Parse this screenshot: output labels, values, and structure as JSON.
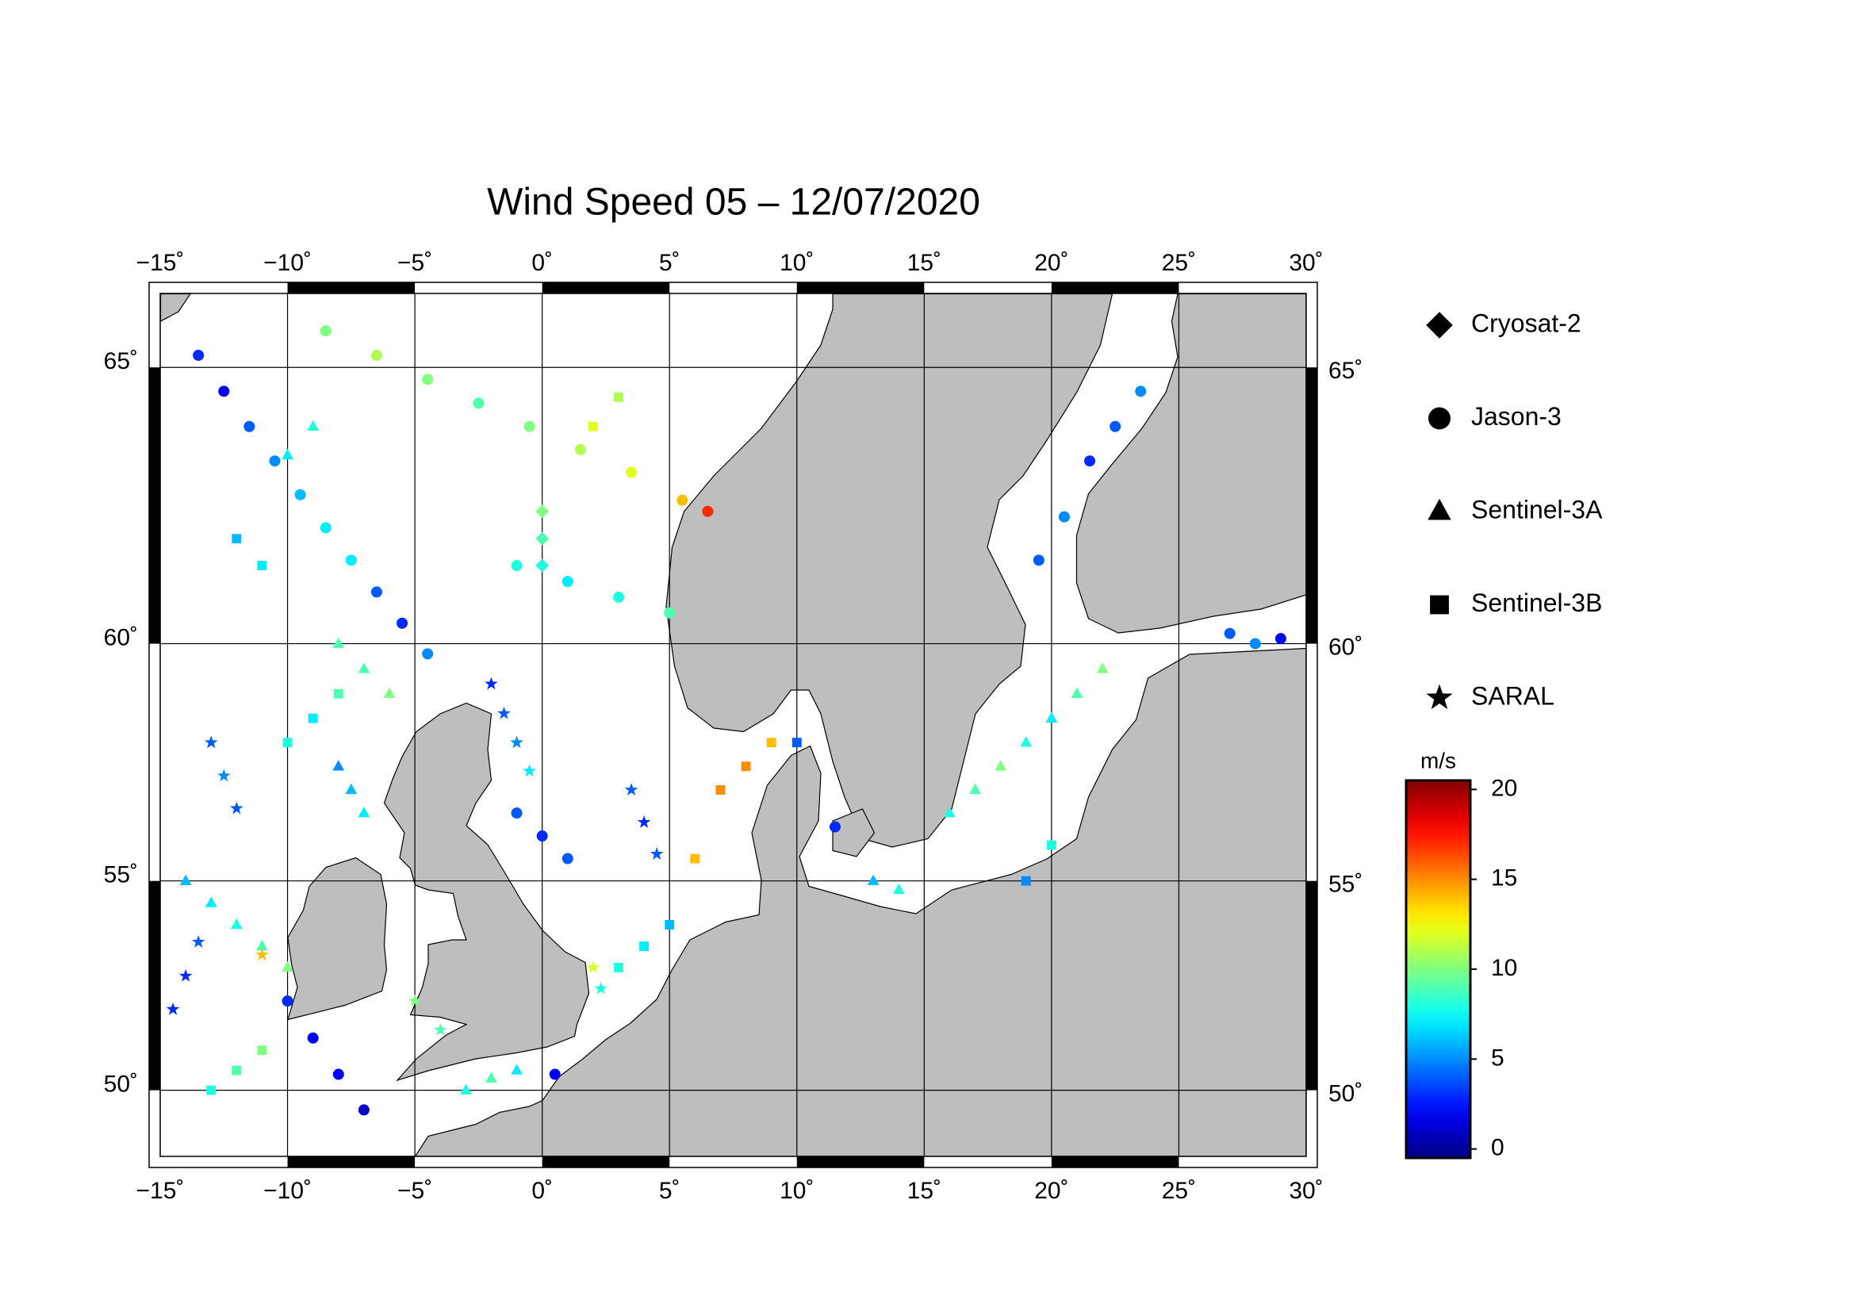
{
  "chart_data": {
    "type": "map-scatter",
    "title": "Wind Speed 05 – 12/07/2020",
    "projection": "mercator",
    "xlim": [
      -15,
      30
    ],
    "ylim": [
      48.3,
      66.2
    ],
    "xticks": [
      {
        "value": -15,
        "label": "−15˚"
      },
      {
        "value": -10,
        "label": "−10˚"
      },
      {
        "value": -5,
        "label": "−5˚"
      },
      {
        "value": 0,
        "label": "0˚"
      },
      {
        "value": 5,
        "label": "5˚"
      },
      {
        "value": 10,
        "label": "10˚"
      },
      {
        "value": 15,
        "label": "15˚"
      },
      {
        "value": 20,
        "label": "20˚"
      },
      {
        "value": 25,
        "label": "25˚"
      },
      {
        "value": 30,
        "label": "30˚"
      }
    ],
    "yticks": [
      {
        "value": 50,
        "label": "50˚"
      },
      {
        "value": 55,
        "label": "55˚"
      },
      {
        "value": 60,
        "label": "60˚"
      },
      {
        "value": 65,
        "label": "65˚"
      }
    ],
    "grid": true,
    "colorbar": {
      "label": "m/s",
      "colormap": "jet",
      "clim": [
        -0.5,
        20.5
      ],
      "ticks": [
        0,
        5,
        10,
        15,
        20
      ]
    },
    "series": [
      {
        "name": "Cryosat-2",
        "marker": "diamond",
        "lon": [
          0,
          0,
          0
        ],
        "lat": [
          61.5,
          62,
          62.5
        ],
        "values": [
          8,
          9,
          10
        ]
      },
      {
        "name": "Jason-3",
        "marker": "circle",
        "lon": [
          -13.5,
          -12.5,
          -11.5,
          -10.5,
          -9.5,
          -8.5,
          -7.5,
          -6.5,
          -5.5,
          -4.5,
          -8.5,
          -6.5,
          -4.5,
          -2.5,
          -0.5,
          1.5,
          3.5,
          5.5,
          6.5,
          -1,
          1,
          3,
          5,
          -10,
          -9,
          -8,
          -7,
          -1,
          0,
          1,
          23.5,
          22.5,
          21.5,
          20.5,
          19.5,
          27,
          28,
          29,
          11.5,
          0.5
        ],
        "lat": [
          65.2,
          64.6,
          64.0,
          63.4,
          62.8,
          62.2,
          61.6,
          61.0,
          60.4,
          59.8,
          65.6,
          65.2,
          64.8,
          64.4,
          64.0,
          63.6,
          63.2,
          62.7,
          62.5,
          61.5,
          61.2,
          60.9,
          60.6,
          52.2,
          51.3,
          50.4,
          49.5,
          56.5,
          56.0,
          55.5,
          64.6,
          64.0,
          63.4,
          62.4,
          61.6,
          60.2,
          60.0,
          60.1,
          56.2,
          50.4
        ],
        "values": [
          3,
          2,
          4,
          5,
          6,
          7,
          7,
          4,
          3,
          5,
          10,
          11,
          10,
          9,
          10,
          11,
          12,
          14,
          17,
          8,
          7,
          8,
          9,
          3,
          2,
          2,
          1,
          4,
          3,
          4,
          5,
          4,
          3,
          5,
          4,
          4,
          5,
          2,
          3,
          2
        ]
      },
      {
        "name": "Sentinel-3A",
        "marker": "triangle",
        "lon": [
          -14,
          -13,
          -12,
          -11,
          -10,
          -7,
          -7.5,
          -8,
          16,
          17,
          18,
          19,
          20,
          21,
          22,
          -3,
          -2,
          -1,
          -8,
          -7,
          -6,
          -9,
          -10,
          14,
          13
        ],
        "lat": [
          55,
          54.5,
          54,
          53.5,
          53,
          56.5,
          57,
          57.5,
          56.5,
          57,
          57.5,
          58,
          58.5,
          59,
          59.5,
          50,
          50.3,
          50.5,
          60,
          59.5,
          59,
          64,
          63.5,
          54.8,
          55
        ],
        "values": [
          6,
          7,
          8,
          9,
          10,
          7,
          6,
          5,
          8,
          9,
          10,
          8,
          7,
          9,
          10,
          8,
          9,
          7,
          9,
          9,
          10,
          8,
          7,
          8,
          6
        ]
      },
      {
        "name": "Sentinel-3B",
        "marker": "square",
        "lon": [
          -13,
          -12,
          -11,
          -10,
          -9,
          -8,
          3,
          4,
          5,
          6,
          7,
          8,
          9,
          2,
          3,
          -12,
          -11,
          10,
          19,
          20
        ],
        "lat": [
          50,
          50.5,
          51,
          58,
          58.5,
          59,
          53,
          53.5,
          54,
          55.5,
          57,
          57.5,
          58,
          64,
          64.5,
          62,
          61.5,
          58.0,
          55.0,
          55.8
        ],
        "values": [
          8,
          9,
          10,
          8,
          7,
          9,
          8,
          7,
          6,
          14,
          15,
          15,
          14,
          12,
          11,
          6,
          7,
          4,
          5,
          8
        ]
      },
      {
        "name": "SARAL",
        "marker": "star",
        "lon": [
          -14.5,
          -14,
          -13.5,
          -13,
          -12.5,
          -12,
          -2,
          -1.5,
          -1,
          -0.5,
          3.5,
          4,
          4.5,
          -11,
          2,
          2.3,
          -4,
          -5
        ],
        "lat": [
          52,
          52.8,
          53.6,
          58,
          57.3,
          56.6,
          59.2,
          58.6,
          58.0,
          57.4,
          57,
          56.3,
          55.6,
          53.3,
          53,
          52.5,
          51.5,
          52.2
        ],
        "values": [
          3,
          3,
          4,
          4,
          5,
          4,
          3,
          4,
          5,
          7,
          4,
          3,
          4,
          14,
          12,
          8,
          9,
          10
        ]
      }
    ]
  }
}
